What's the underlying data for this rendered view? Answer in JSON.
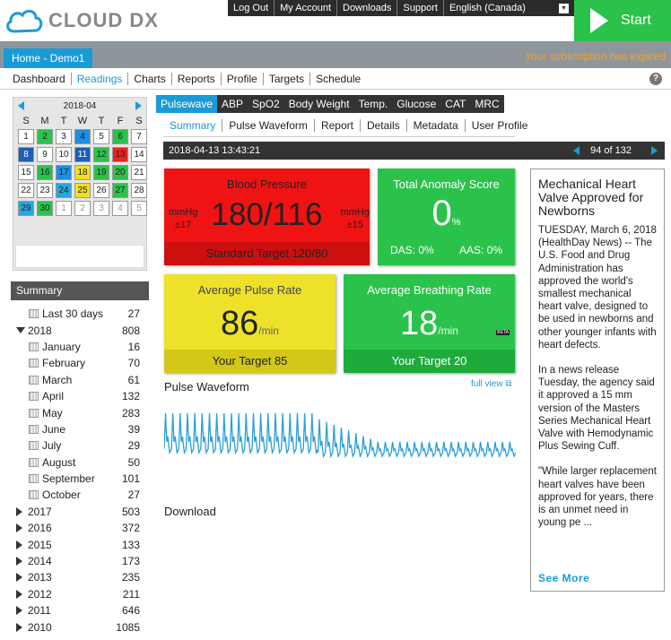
{
  "app": {
    "logo_text": "CLOUD DX"
  },
  "topnav": {
    "items": [
      "Log Out",
      "My Account",
      "Downloads",
      "Support"
    ],
    "language": "English (Canada)"
  },
  "start": {
    "label": "Start"
  },
  "home_tab": "Home - Demo1",
  "subscription_notice": "Your subscription has expired",
  "mainnav": {
    "items": [
      "Dashboard",
      "Readings",
      "Charts",
      "Reports",
      "Profile",
      "Targets",
      "Schedule"
    ],
    "active": "Readings"
  },
  "calendar": {
    "month": "2018-04",
    "dow": [
      "S",
      "M",
      "T",
      "W",
      "T",
      "F",
      "S"
    ],
    "days": [
      {
        "d": "1",
        "c": ""
      },
      {
        "d": "2",
        "c": "green"
      },
      {
        "d": "3",
        "c": ""
      },
      {
        "d": "4",
        "c": "blue"
      },
      {
        "d": "5",
        "c": ""
      },
      {
        "d": "6",
        "c": "green"
      },
      {
        "d": "7",
        "c": ""
      },
      {
        "d": "8",
        "c": "navy"
      },
      {
        "d": "9",
        "c": ""
      },
      {
        "d": "10",
        "c": ""
      },
      {
        "d": "11",
        "c": "navy"
      },
      {
        "d": "12",
        "c": "green"
      },
      {
        "d": "13",
        "c": "red"
      },
      {
        "d": "14",
        "c": ""
      },
      {
        "d": "15",
        "c": ""
      },
      {
        "d": "16",
        "c": "green"
      },
      {
        "d": "17",
        "c": "blue"
      },
      {
        "d": "18",
        "c": "yellow"
      },
      {
        "d": "19",
        "c": "green"
      },
      {
        "d": "20",
        "c": "green"
      },
      {
        "d": "21",
        "c": ""
      },
      {
        "d": "22",
        "c": ""
      },
      {
        "d": "23",
        "c": ""
      },
      {
        "d": "24",
        "c": "cyan"
      },
      {
        "d": "25",
        "c": "yellow"
      },
      {
        "d": "26",
        "c": ""
      },
      {
        "d": "27",
        "c": "green"
      },
      {
        "d": "28",
        "c": ""
      },
      {
        "d": "29",
        "c": "cyan"
      },
      {
        "d": "30",
        "c": "green"
      },
      {
        "d": "1",
        "c": "other"
      },
      {
        "d": "2",
        "c": "other"
      },
      {
        "d": "3",
        "c": "other"
      },
      {
        "d": "4",
        "c": "other"
      },
      {
        "d": "5",
        "c": "other"
      }
    ]
  },
  "summary": {
    "title": "Summary",
    "rows": [
      {
        "label": "Last 30 days",
        "count": "27",
        "type": "cal",
        "indent": 1
      },
      {
        "label": "2018",
        "count": "808",
        "type": "open",
        "indent": 0
      },
      {
        "label": "January",
        "count": "16",
        "type": "cal",
        "indent": 1
      },
      {
        "label": "February",
        "count": "70",
        "type": "cal",
        "indent": 1
      },
      {
        "label": "March",
        "count": "61",
        "type": "cal",
        "indent": 1
      },
      {
        "label": "April",
        "count": "132",
        "type": "cal",
        "indent": 1
      },
      {
        "label": "May",
        "count": "283",
        "type": "cal",
        "indent": 1
      },
      {
        "label": "June",
        "count": "39",
        "type": "cal",
        "indent": 1
      },
      {
        "label": "July",
        "count": "29",
        "type": "cal",
        "indent": 1
      },
      {
        "label": "August",
        "count": "50",
        "type": "cal",
        "indent": 1
      },
      {
        "label": "September",
        "count": "101",
        "type": "cal",
        "indent": 1
      },
      {
        "label": "October",
        "count": "27",
        "type": "cal",
        "indent": 1
      },
      {
        "label": "2017",
        "count": "503",
        "type": "closed",
        "indent": 0
      },
      {
        "label": "2016",
        "count": "372",
        "type": "closed",
        "indent": 0
      },
      {
        "label": "2015",
        "count": "133",
        "type": "closed",
        "indent": 0
      },
      {
        "label": "2014",
        "count": "173",
        "type": "closed",
        "indent": 0
      },
      {
        "label": "2013",
        "count": "235",
        "type": "closed",
        "indent": 0
      },
      {
        "label": "2012",
        "count": "211",
        "type": "closed",
        "indent": 0
      },
      {
        "label": "2011",
        "count": "646",
        "type": "closed",
        "indent": 0
      },
      {
        "label": "2010",
        "count": "1085",
        "type": "closed",
        "indent": 0
      }
    ]
  },
  "measure_tabs": {
    "items": [
      "Pulsewave",
      "ABP",
      "SpO2",
      "Body Weight",
      "Temp.",
      "Glucose",
      "CAT",
      "MRC"
    ],
    "active": "Pulsewave"
  },
  "view_tabs": {
    "items": [
      "Summary",
      "Pulse Waveform",
      "Report",
      "Details",
      "Metadata",
      "User Profile"
    ],
    "active": "Summary"
  },
  "reading": {
    "timestamp": "2018-04-13 13:43:21",
    "position": "94 of 132"
  },
  "blood_pressure": {
    "title": "Blood Pressure",
    "value": "180/116",
    "unit_left": "mmHg",
    "tol_left": "±17",
    "unit_right": "mmHg",
    "tol_right": "±15",
    "footer": "Standard Target 120/80",
    "color": "#ef1313"
  },
  "anomaly": {
    "title": "Total Anomaly Score",
    "value": "0",
    "unit": "%",
    "das": "DAS: 0%",
    "aas": "AAS: 0%",
    "color": "#2bc24b"
  },
  "pulse_rate": {
    "title": "Average Pulse Rate",
    "value": "86",
    "unit": "/min",
    "footer": "Your Target 85",
    "color": "#ede12a"
  },
  "breathing_rate": {
    "title": "Average Breathing Rate",
    "value": "18",
    "unit": "/min",
    "badge": "BETA",
    "footer": "Your Target 20",
    "color": "#2bc24b"
  },
  "waveform": {
    "title": "Pulse Waveform",
    "full_view": "full view",
    "line_color": "#2a9fd8"
  },
  "download": "Download",
  "news": {
    "title": "Mechanical Heart Valve Approved for Newborns",
    "paragraphs": [
      "TUESDAY, March 6, 2018 (HealthDay News) -- The U.S. Food and Drug Administration has approved the world's smallest mechanical heart valve, designed to be used in newborns and other younger infants with heart defects.",
      "In a news release Tuesday, the agency said it approved a 15 mm version of the Masters Series Mechanical Heart Valve with Hemodynamic Plus Sewing Cuff.",
      "\"While larger replacement heart valves have been approved for years, there is an unmet need in young pe ..."
    ],
    "more": "See More"
  }
}
